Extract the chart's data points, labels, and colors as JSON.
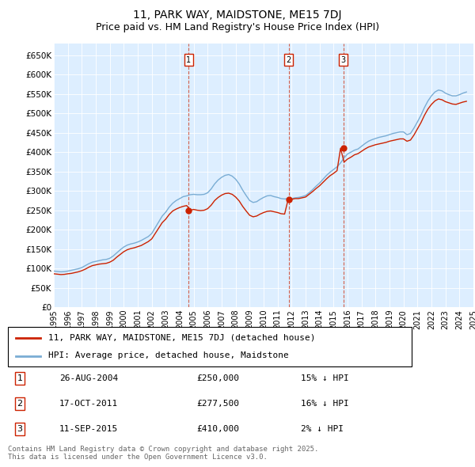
{
  "title": "11, PARK WAY, MAIDSTONE, ME15 7DJ",
  "subtitle": "Price paid vs. HM Land Registry's House Price Index (HPI)",
  "plot_bg_color": "#ddeeff",
  "ylim": [
    0,
    680000
  ],
  "yticks": [
    0,
    50000,
    100000,
    150000,
    200000,
    250000,
    300000,
    350000,
    400000,
    450000,
    500000,
    550000,
    600000,
    650000
  ],
  "ytick_labels": [
    "£0",
    "£50K",
    "£100K",
    "£150K",
    "£200K",
    "£250K",
    "£300K",
    "£350K",
    "£400K",
    "£450K",
    "£500K",
    "£550K",
    "£600K",
    "£650K"
  ],
  "hpi_line_color": "#7aadd4",
  "price_line_color": "#cc2200",
  "sale_marker_color": "#cc2200",
  "vline_color": "#cc2200",
  "sales": [
    {
      "date_num": 2004.65,
      "price": 250000,
      "label": "1",
      "date_str": "26-AUG-2004",
      "pct": "15% ↓ HPI"
    },
    {
      "date_num": 2011.79,
      "price": 277500,
      "label": "2",
      "date_str": "17-OCT-2011",
      "pct": "16% ↓ HPI"
    },
    {
      "date_num": 2015.69,
      "price": 410000,
      "label": "3",
      "date_str": "11-SEP-2015",
      "pct": "2% ↓ HPI"
    }
  ],
  "hpi_data": {
    "years": [
      1995.0,
      1995.25,
      1995.5,
      1995.75,
      1996.0,
      1996.25,
      1996.5,
      1996.75,
      1997.0,
      1997.25,
      1997.5,
      1997.75,
      1998.0,
      1998.25,
      1998.5,
      1998.75,
      1999.0,
      1999.25,
      1999.5,
      1999.75,
      2000.0,
      2000.25,
      2000.5,
      2000.75,
      2001.0,
      2001.25,
      2001.5,
      2001.75,
      2002.0,
      2002.25,
      2002.5,
      2002.75,
      2003.0,
      2003.25,
      2003.5,
      2003.75,
      2004.0,
      2004.25,
      2004.5,
      2004.75,
      2005.0,
      2005.25,
      2005.5,
      2005.75,
      2006.0,
      2006.25,
      2006.5,
      2006.75,
      2007.0,
      2007.25,
      2007.5,
      2007.75,
      2008.0,
      2008.25,
      2008.5,
      2008.75,
      2009.0,
      2009.25,
      2009.5,
      2009.75,
      2010.0,
      2010.25,
      2010.5,
      2010.75,
      2011.0,
      2011.25,
      2011.5,
      2011.75,
      2012.0,
      2012.25,
      2012.5,
      2012.75,
      2013.0,
      2013.25,
      2013.5,
      2013.75,
      2014.0,
      2014.25,
      2014.5,
      2014.75,
      2015.0,
      2015.25,
      2015.5,
      2015.75,
      2016.0,
      2016.25,
      2016.5,
      2016.75,
      2017.0,
      2017.25,
      2017.5,
      2017.75,
      2018.0,
      2018.25,
      2018.5,
      2018.75,
      2019.0,
      2019.25,
      2019.5,
      2019.75,
      2020.0,
      2020.25,
      2020.5,
      2020.75,
      2021.0,
      2021.25,
      2021.5,
      2021.75,
      2022.0,
      2022.25,
      2022.5,
      2022.75,
      2023.0,
      2023.25,
      2023.5,
      2023.75,
      2024.0,
      2024.25,
      2024.5
    ],
    "values": [
      93000,
      92000,
      91000,
      91500,
      93000,
      95000,
      97000,
      99000,
      102000,
      107000,
      112000,
      116000,
      118000,
      120000,
      122000,
      123000,
      126000,
      132000,
      140000,
      148000,
      155000,
      160000,
      163000,
      165000,
      168000,
      172000,
      177000,
      182000,
      190000,
      205000,
      220000,
      235000,
      245000,
      258000,
      268000,
      275000,
      280000,
      285000,
      287000,
      290000,
      291000,
      290000,
      290000,
      291000,
      295000,
      305000,
      318000,
      328000,
      335000,
      340000,
      342000,
      338000,
      330000,
      318000,
      302000,
      288000,
      275000,
      270000,
      272000,
      278000,
      283000,
      287000,
      288000,
      285000,
      283000,
      280000,
      279000,
      280000,
      280000,
      282000,
      283000,
      285000,
      288000,
      295000,
      303000,
      312000,
      320000,
      330000,
      340000,
      348000,
      355000,
      362000,
      372000,
      385000,
      395000,
      400000,
      405000,
      408000,
      415000,
      422000,
      428000,
      432000,
      435000,
      438000,
      440000,
      442000,
      445000,
      448000,
      450000,
      452000,
      452000,
      445000,
      448000,
      462000,
      478000,
      495000,
      515000,
      532000,
      545000,
      555000,
      560000,
      558000,
      552000,
      548000,
      545000,
      545000,
      548000,
      552000,
      555000
    ]
  },
  "price_paid_data": {
    "years": [
      1995.0,
      1995.25,
      1995.5,
      1995.75,
      1996.0,
      1996.25,
      1996.5,
      1996.75,
      1997.0,
      1997.25,
      1997.5,
      1997.75,
      1998.0,
      1998.25,
      1998.5,
      1998.75,
      1999.0,
      1999.25,
      1999.5,
      1999.75,
      2000.0,
      2000.25,
      2000.5,
      2000.75,
      2001.0,
      2001.25,
      2001.5,
      2001.75,
      2002.0,
      2002.25,
      2002.5,
      2002.75,
      2003.0,
      2003.25,
      2003.5,
      2003.75,
      2004.0,
      2004.25,
      2004.5,
      2004.75,
      2005.0,
      2005.25,
      2005.5,
      2005.75,
      2006.0,
      2006.25,
      2006.5,
      2006.75,
      2007.0,
      2007.25,
      2007.5,
      2007.75,
      2008.0,
      2008.25,
      2008.5,
      2008.75,
      2009.0,
      2009.25,
      2009.5,
      2009.75,
      2010.0,
      2010.25,
      2010.5,
      2010.75,
      2011.0,
      2011.25,
      2011.5,
      2011.75,
      2012.0,
      2012.25,
      2012.5,
      2012.75,
      2013.0,
      2013.25,
      2013.5,
      2013.75,
      2014.0,
      2014.25,
      2014.5,
      2014.75,
      2015.0,
      2015.25,
      2015.5,
      2015.75,
      2016.0,
      2016.25,
      2016.5,
      2016.75,
      2017.0,
      2017.25,
      2017.5,
      2017.75,
      2018.0,
      2018.25,
      2018.5,
      2018.75,
      2019.0,
      2019.25,
      2019.5,
      2019.75,
      2020.0,
      2020.25,
      2020.5,
      2020.75,
      2021.0,
      2021.25,
      2021.5,
      2021.75,
      2022.0,
      2022.25,
      2022.5,
      2022.75,
      2023.0,
      2023.25,
      2023.5,
      2023.75,
      2024.0,
      2024.25,
      2024.5
    ],
    "values": [
      86000,
      85000,
      84000,
      84500,
      86000,
      87000,
      89000,
      91000,
      94000,
      98000,
      103000,
      107000,
      109000,
      111000,
      112000,
      113000,
      116000,
      121000,
      129000,
      136000,
      143000,
      148000,
      151000,
      153000,
      156000,
      159000,
      164000,
      169000,
      176000,
      190000,
      204000,
      218000,
      227000,
      239000,
      248000,
      253000,
      257000,
      260000,
      262000,
      250000,
      252000,
      250000,
      249000,
      250000,
      254000,
      263000,
      275000,
      283000,
      289000,
      293000,
      294000,
      291000,
      284000,
      274000,
      260000,
      248000,
      237000,
      233000,
      235000,
      240000,
      244000,
      247000,
      248000,
      246000,
      244000,
      241000,
      240000,
      277500,
      278000,
      280000,
      280000,
      282000,
      284000,
      291000,
      298000,
      306000,
      313000,
      322000,
      331000,
      339000,
      345000,
      352000,
      410000,
      374000,
      382000,
      387000,
      393000,
      396000,
      402000,
      408000,
      413000,
      416000,
      419000,
      421000,
      423000,
      425000,
      428000,
      430000,
      432000,
      434000,
      434000,
      428000,
      431000,
      444000,
      460000,
      476000,
      495000,
      511000,
      523000,
      532000,
      537000,
      535000,
      530000,
      527000,
      524000,
      523000,
      526000,
      529000,
      531000
    ]
  },
  "legend_line1": "11, PARK WAY, MAIDSTONE, ME15 7DJ (detached house)",
  "legend_line2": "HPI: Average price, detached house, Maidstone",
  "footnote": "Contains HM Land Registry data © Crown copyright and database right 2025.\nThis data is licensed under the Open Government Licence v3.0.",
  "xtick_years": [
    1995,
    1996,
    1997,
    1998,
    1999,
    2000,
    2001,
    2002,
    2003,
    2004,
    2005,
    2006,
    2007,
    2008,
    2009,
    2010,
    2011,
    2012,
    2013,
    2014,
    2015,
    2016,
    2017,
    2018,
    2019,
    2020,
    2021,
    2022,
    2023,
    2024,
    2025
  ]
}
